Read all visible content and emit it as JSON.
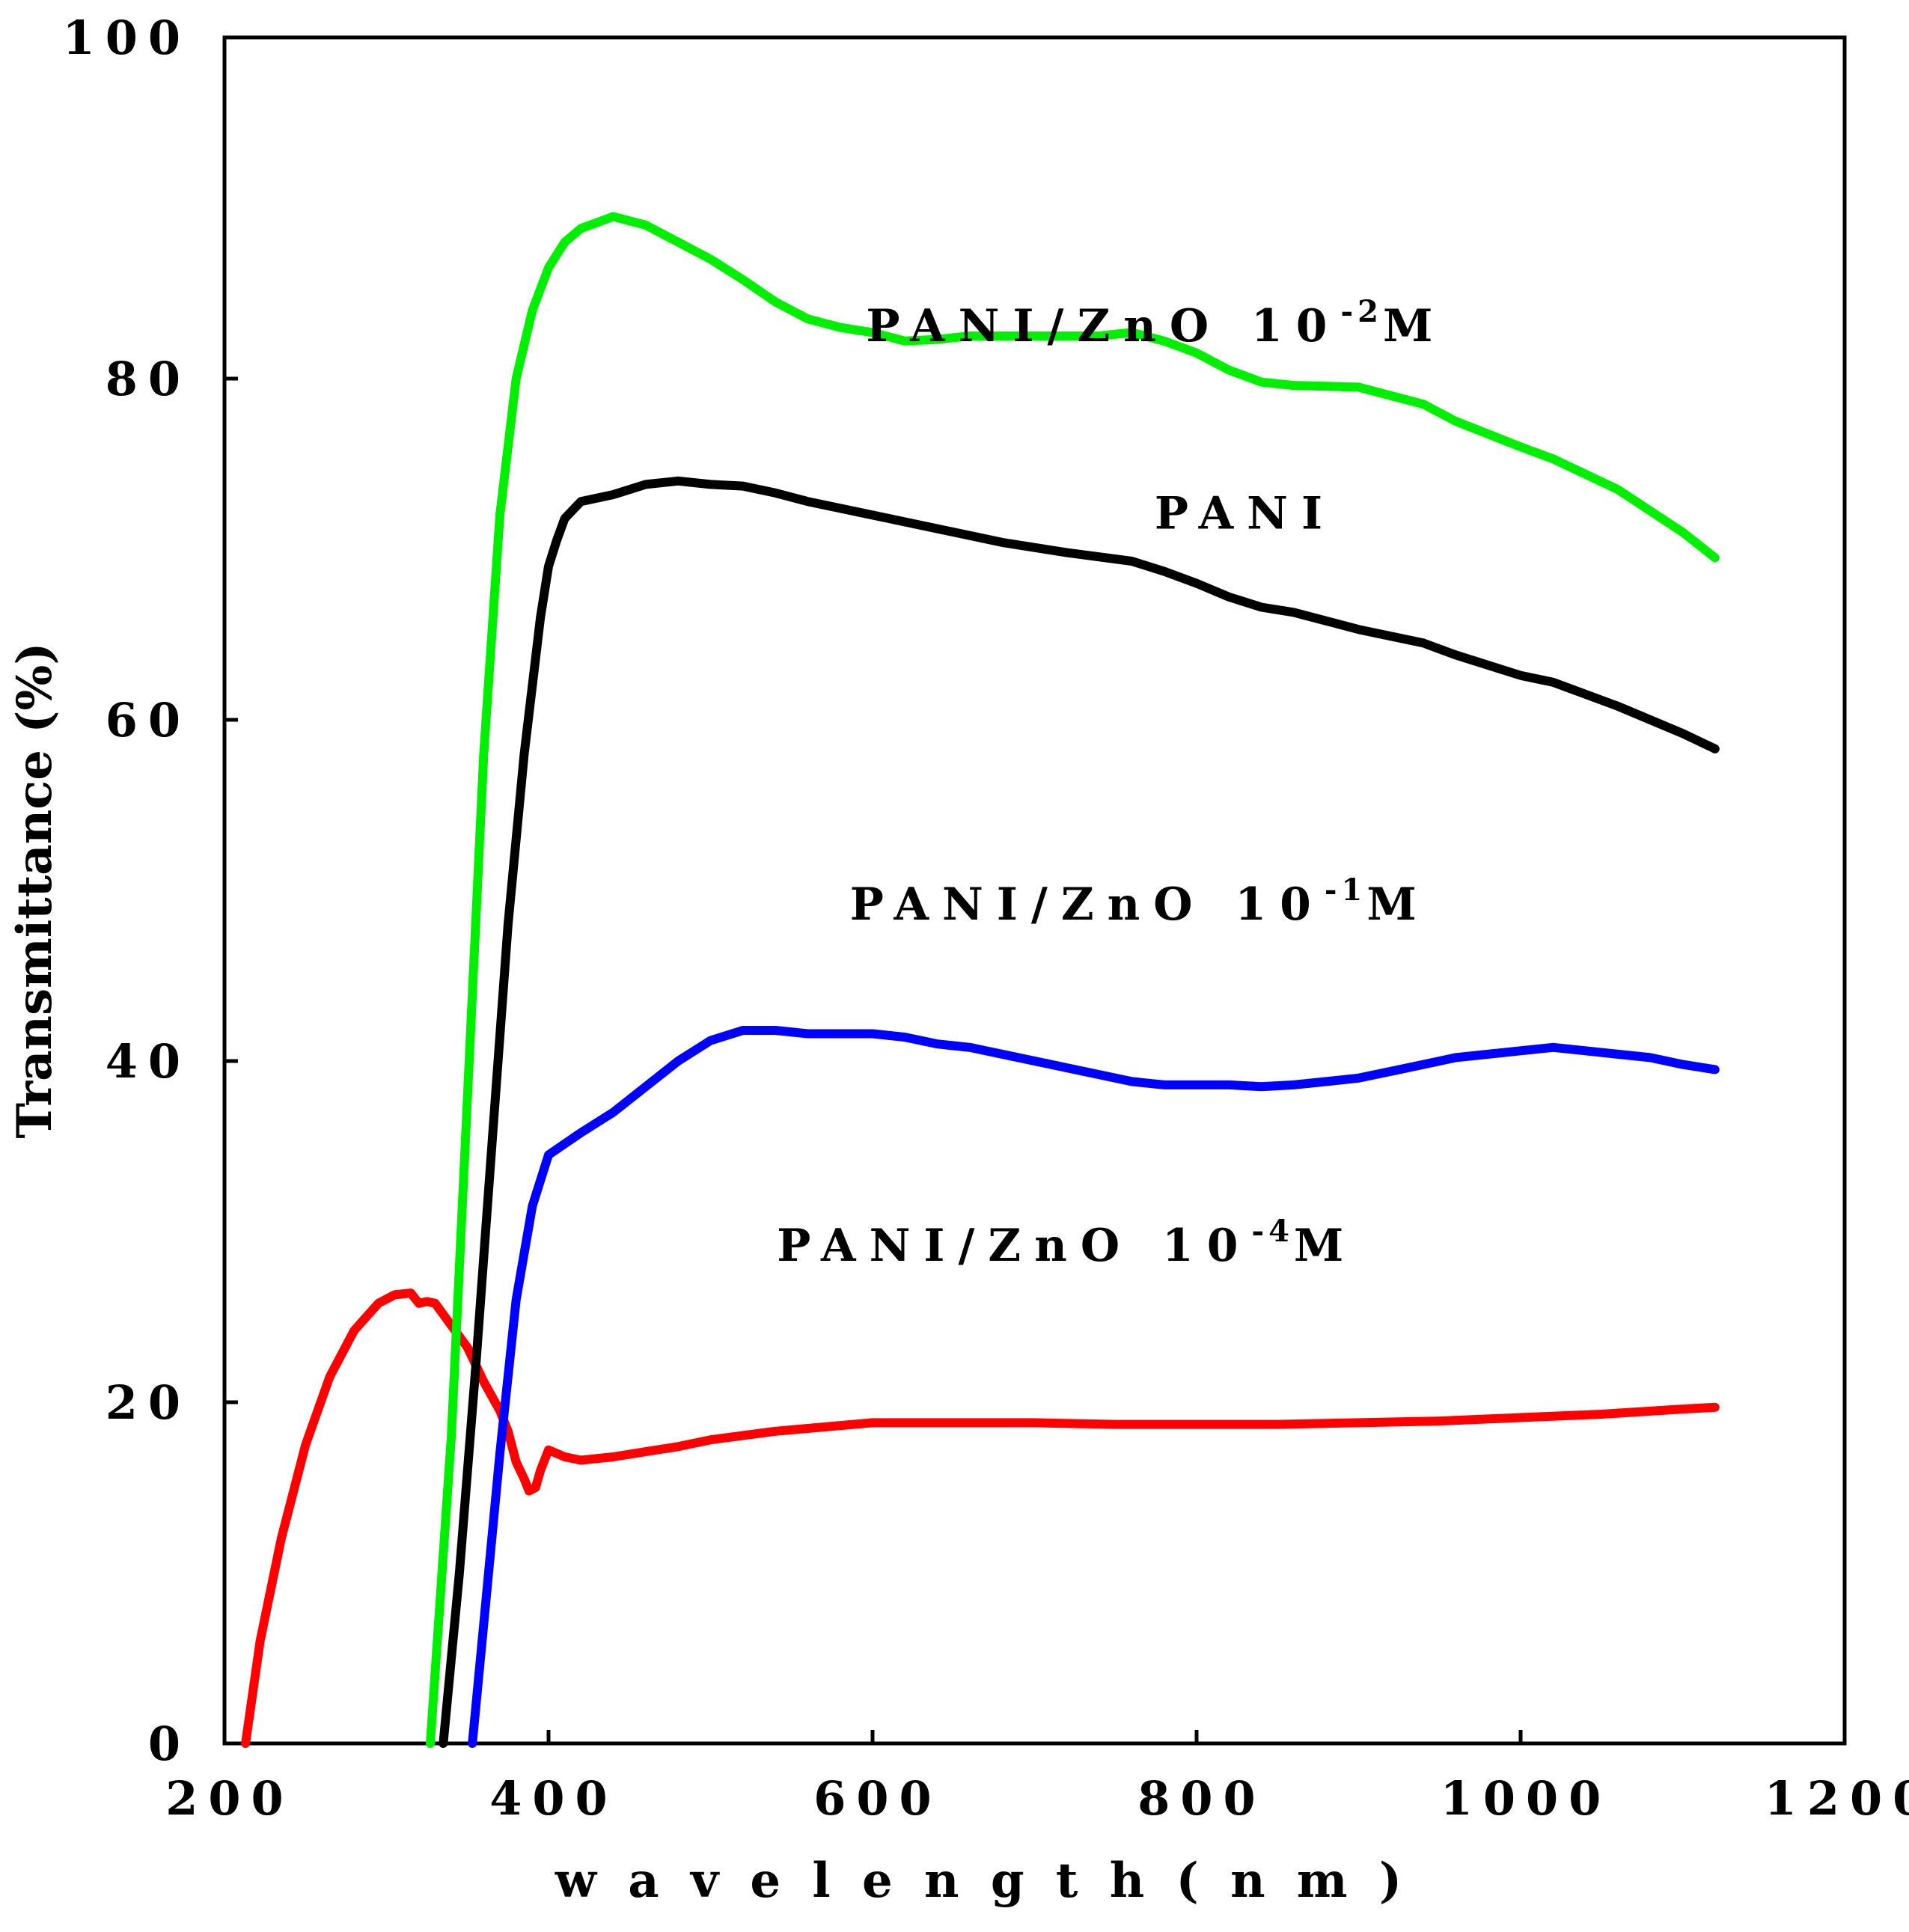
{
  "chart_data": {
    "type": "line",
    "title": "",
    "xlabel": "w a v e l e n g t h ( n m )",
    "ylabel": "Transmittance (%)",
    "xlim": [
      200,
      1200
    ],
    "ylim": [
      0,
      100
    ],
    "xticks": [
      200,
      400,
      600,
      800,
      1000,
      1200
    ],
    "yticks": [
      0,
      20,
      40,
      60,
      80,
      100
    ],
    "grid": false,
    "series": [
      {
        "name": "PANI/ZnO 10-2M",
        "label_main": "PANI/ZnO 10",
        "label_sup": "-2",
        "label_suffix": "M",
        "color": "#00ee00",
        "x": [
          327,
          340,
          350,
          360,
          370,
          380,
          390,
          400,
          410,
          420,
          440,
          460,
          480,
          500,
          520,
          540,
          560,
          580,
          600,
          620,
          640,
          660,
          700,
          740,
          760,
          780,
          800,
          820,
          840,
          860,
          900,
          940,
          960,
          1000,
          1020,
          1060,
          1100,
          1120
        ],
        "y": [
          0,
          18,
          38,
          58,
          72,
          80,
          84,
          86.5,
          88,
          88.8,
          89.5,
          89,
          88,
          87,
          85.8,
          84.5,
          83.5,
          83,
          82.7,
          82.2,
          82.3,
          82.5,
          82.5,
          82.5,
          82.7,
          82.2,
          81.5,
          80.5,
          79.8,
          79.6,
          79.5,
          78.5,
          77.5,
          76,
          75.3,
          73.5,
          71,
          69.5
        ]
      },
      {
        "name": "PANI",
        "label_main": "PANI",
        "label_sup": "",
        "label_suffix": "",
        "color": "#000000",
        "x": [
          335,
          345,
          355,
          365,
          375,
          385,
          395,
          400,
          405,
          410,
          420,
          440,
          460,
          480,
          500,
          520,
          540,
          560,
          600,
          640,
          680,
          720,
          760,
          780,
          800,
          820,
          840,
          860,
          880,
          900,
          940,
          960,
          1000,
          1020,
          1060,
          1100,
          1120
        ],
        "y": [
          0,
          10,
          22,
          35,
          48,
          58,
          66,
          69,
          70.5,
          71.8,
          72.8,
          73.2,
          73.8,
          74,
          73.8,
          73.7,
          73.3,
          72.8,
          72,
          71.2,
          70.4,
          69.8,
          69.3,
          68.7,
          68,
          67.2,
          66.6,
          66.3,
          65.8,
          65.3,
          64.5,
          63.8,
          62.6,
          62.2,
          60.8,
          59.2,
          58.3
        ]
      },
      {
        "name": "PANI/ZnO 10-1M",
        "label_main": "PANI/ZnO 10",
        "label_sup": "-1",
        "label_suffix": "M",
        "color": "#0000ff",
        "x": [
          353,
          360,
          370,
          380,
          390,
          395,
          400,
          420,
          440,
          460,
          480,
          500,
          520,
          540,
          560,
          580,
          600,
          620,
          640,
          660,
          680,
          700,
          720,
          740,
          760,
          780,
          800,
          820,
          840,
          860,
          880,
          900,
          920,
          940,
          960,
          980,
          1000,
          1020,
          1040,
          1060,
          1080,
          1100,
          1120
        ],
        "y": [
          0,
          7,
          17,
          26,
          31.5,
          33,
          34.5,
          35.8,
          37,
          38.5,
          40,
          41.2,
          41.8,
          41.8,
          41.6,
          41.6,
          41.6,
          41.4,
          41,
          40.8,
          40.4,
          40,
          39.6,
          39.2,
          38.8,
          38.6,
          38.6,
          38.6,
          38.5,
          38.6,
          38.8,
          39,
          39.4,
          39.8,
          40.2,
          40.4,
          40.6,
          40.8,
          40.6,
          40.4,
          40.2,
          39.8,
          39.5
        ]
      },
      {
        "name": "PANI/ZnO 10-4M",
        "label_main": "PANI/ZnO 10",
        "label_sup": "-4",
        "label_suffix": "M",
        "color": "#ff0000",
        "x": [
          213,
          222,
          235,
          250,
          265,
          280,
          295,
          305,
          315,
          320,
          325,
          330,
          340,
          350,
          360,
          370,
          375,
          380,
          385,
          388,
          392,
          395,
          400,
          410,
          420,
          440,
          460,
          480,
          500,
          540,
          600,
          650,
          700,
          750,
          800,
          850,
          900,
          950,
          1000,
          1050,
          1100,
          1120
        ],
        "y": [
          0,
          6,
          12,
          17.5,
          21.5,
          24.2,
          25.8,
          26.3,
          26.4,
          25.8,
          25.9,
          25.8,
          24.5,
          23.2,
          21.2,
          19.5,
          18.3,
          16.5,
          15.5,
          14.8,
          15,
          16,
          17.2,
          16.8,
          16.6,
          16.8,
          17.1,
          17.4,
          17.8,
          18.3,
          18.8,
          18.8,
          18.8,
          18.7,
          18.7,
          18.7,
          18.8,
          18.9,
          19.1,
          19.3,
          19.6,
          19.7
        ]
      }
    ],
    "annotations": [
      {
        "series": 0,
        "x_data": 775,
        "y_data": 82.2
      },
      {
        "series": 1,
        "x_data": 830,
        "y_data": 71.2
      },
      {
        "series": 2,
        "x_data": 765,
        "y_data": 48.3
      },
      {
        "series": 3,
        "x_data": 720,
        "y_data": 28.3
      }
    ]
  }
}
